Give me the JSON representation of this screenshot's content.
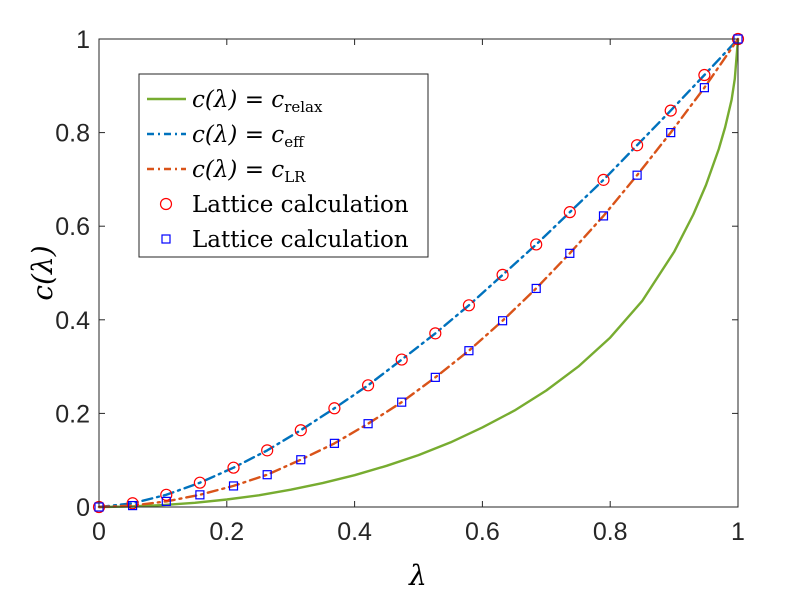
{
  "chart_data": {
    "type": "line",
    "xlabel": "λ",
    "ylabel": "c(λ)",
    "xlim": [
      0,
      1
    ],
    "ylim": [
      0,
      1
    ],
    "grid": false,
    "legend_position": "top-left",
    "x_ticks": [
      "0",
      "0.2",
      "0.4",
      "0.6",
      "0.8",
      "1"
    ],
    "y_ticks": [
      "0",
      "0.2",
      "0.4",
      "0.6",
      "0.8",
      "1"
    ],
    "series": [
      {
        "name": "c(λ) = c_relax",
        "kind": "line",
        "style": "solid",
        "color": "#77AC30",
        "legend": {
          "lhs": "c(λ) = c",
          "sub": "relax"
        },
        "x": [
          0,
          0.05,
          0.1,
          0.15,
          0.2,
          0.25,
          0.3,
          0.35,
          0.4,
          0.45,
          0.5,
          0.55,
          0.6,
          0.65,
          0.7,
          0.75,
          0.8,
          0.85,
          0.9,
          0.93,
          0.95,
          0.97,
          0.98,
          0.99,
          0.995,
          1.0
        ],
        "y": [
          0,
          0.001,
          0.004,
          0.009,
          0.016,
          0.025,
          0.037,
          0.051,
          0.068,
          0.088,
          0.111,
          0.138,
          0.17,
          0.206,
          0.249,
          0.3,
          0.362,
          0.44,
          0.545,
          0.625,
          0.688,
          0.765,
          0.812,
          0.87,
          0.915,
          1.0
        ]
      },
      {
        "name": "c(λ) = c_eff",
        "kind": "line",
        "style": "dashdot",
        "color": "#0072BD",
        "legend": {
          "lhs": "c(λ) = c",
          "sub": "eff"
        },
        "x": [
          0,
          0.0526,
          0.1053,
          0.1579,
          0.2105,
          0.2632,
          0.3158,
          0.3684,
          0.4211,
          0.4737,
          0.5263,
          0.5789,
          0.6316,
          0.6842,
          0.7368,
          0.7895,
          0.8421,
          0.8947,
          0.9474,
          1.0
        ],
        "y": [
          0,
          0.008,
          0.026,
          0.052,
          0.084,
          0.121,
          0.164,
          0.211,
          0.26,
          0.315,
          0.371,
          0.431,
          0.496,
          0.561,
          0.63,
          0.699,
          0.773,
          0.847,
          0.923,
          1.0
        ]
      },
      {
        "name": "c(λ) = c_LR",
        "kind": "line",
        "style": "dashdot",
        "color": "#D95319",
        "legend": {
          "lhs": "c(λ) = c",
          "sub": "LR"
        },
        "x": [
          0,
          0.0526,
          0.1053,
          0.1579,
          0.2105,
          0.2632,
          0.3158,
          0.3684,
          0.4211,
          0.4737,
          0.5263,
          0.5789,
          0.6316,
          0.6842,
          0.7368,
          0.7895,
          0.8421,
          0.8947,
          0.9474,
          1.0
        ],
        "y": [
          0,
          0.003,
          0.012,
          0.026,
          0.045,
          0.069,
          0.101,
          0.136,
          0.178,
          0.224,
          0.277,
          0.334,
          0.398,
          0.467,
          0.542,
          0.622,
          0.709,
          0.8,
          0.896,
          1.0
        ]
      },
      {
        "name": "Lattice calculation",
        "kind": "marker",
        "marker": "circle",
        "color": "#FF0000",
        "legend": {
          "label": "Lattice calculation"
        },
        "x": [
          0,
          0.0526,
          0.1053,
          0.1579,
          0.2105,
          0.2632,
          0.3158,
          0.3684,
          0.4211,
          0.4737,
          0.5263,
          0.5789,
          0.6316,
          0.6842,
          0.7368,
          0.7895,
          0.8421,
          0.8947,
          0.9474,
          1.0
        ],
        "y": [
          0,
          0.008,
          0.026,
          0.052,
          0.084,
          0.121,
          0.164,
          0.211,
          0.26,
          0.315,
          0.371,
          0.431,
          0.496,
          0.561,
          0.63,
          0.699,
          0.773,
          0.847,
          0.923,
          1.0
        ]
      },
      {
        "name": "Lattice calculation",
        "kind": "marker",
        "marker": "square",
        "color": "#0000FF",
        "legend": {
          "label": "Lattice calculation"
        },
        "x": [
          0,
          0.0526,
          0.1053,
          0.1579,
          0.2105,
          0.2632,
          0.3158,
          0.3684,
          0.4211,
          0.4737,
          0.5263,
          0.5789,
          0.6316,
          0.6842,
          0.7368,
          0.7895,
          0.8421,
          0.8947,
          0.9474,
          1.0
        ],
        "y": [
          0,
          0.003,
          0.012,
          0.026,
          0.045,
          0.069,
          0.101,
          0.136,
          0.178,
          0.224,
          0.277,
          0.334,
          0.398,
          0.467,
          0.542,
          0.622,
          0.709,
          0.8,
          0.896,
          1.0
        ]
      }
    ]
  }
}
